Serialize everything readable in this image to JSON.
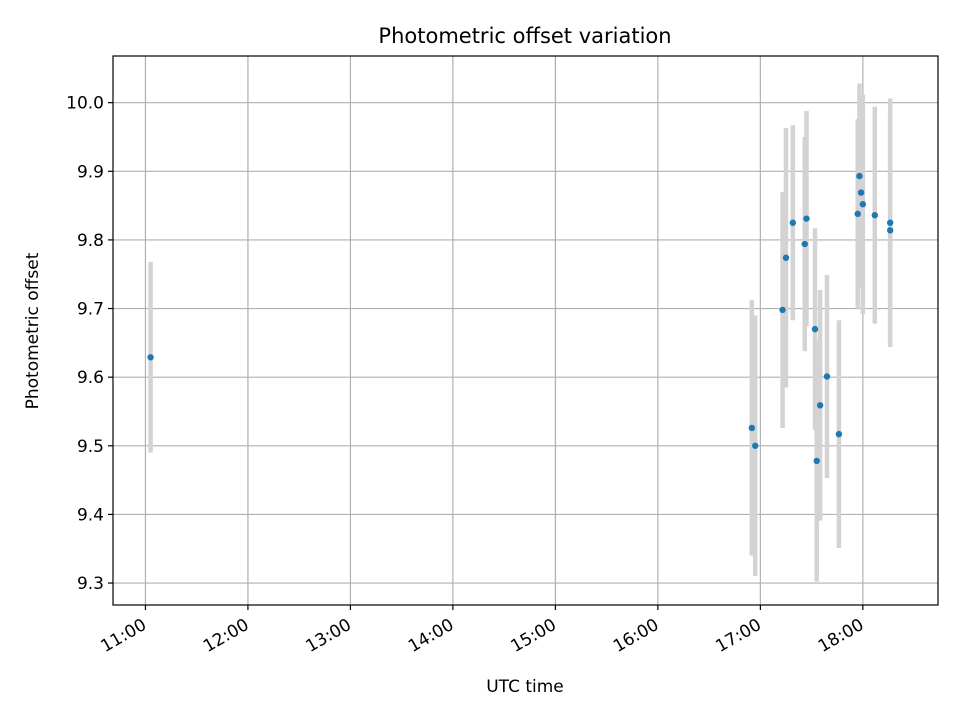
{
  "chart_data": {
    "type": "scatter",
    "title": "Photometric offset variation",
    "xlabel": "UTC time",
    "ylabel": "Photometric offset",
    "x_ticks": [
      "11:00",
      "12:00",
      "13:00",
      "14:00",
      "15:00",
      "16:00",
      "17:00",
      "18:00"
    ],
    "y_ticks": [
      "9.3",
      "9.4",
      "9.5",
      "9.6",
      "9.7",
      "9.8",
      "9.9",
      "10.0"
    ],
    "xlim": [
      "10:41",
      "18:44"
    ],
    "ylim": [
      9.268,
      10.068
    ],
    "grid": true,
    "point_color": "#1f77b4",
    "errorbar_color": "#d3d3d3",
    "points": [
      {
        "x": "11:03",
        "y": 9.629,
        "yerr": 0.139
      },
      {
        "x": "16:55",
        "y": 9.526,
        "yerr": 0.186
      },
      {
        "x": "16:57",
        "y": 9.5,
        "yerr": 0.19
      },
      {
        "x": "17:13",
        "y": 9.698,
        "yerr": 0.172
      },
      {
        "x": "17:15",
        "y": 9.774,
        "yerr": 0.189
      },
      {
        "x": "17:19",
        "y": 9.825,
        "yerr": 0.142
      },
      {
        "x": "17:26",
        "y": 9.794,
        "yerr": 0.156
      },
      {
        "x": "17:27",
        "y": 9.831,
        "yerr": 0.157
      },
      {
        "x": "17:32",
        "y": 9.67,
        "yerr": 0.147
      },
      {
        "x": "17:33",
        "y": 9.478,
        "yerr": 0.176
      },
      {
        "x": "17:35",
        "y": 9.559,
        "yerr": 0.168
      },
      {
        "x": "17:39",
        "y": 9.601,
        "yerr": 0.148
      },
      {
        "x": "17:46",
        "y": 9.517,
        "yerr": 0.166
      },
      {
        "x": "17:57",
        "y": 9.838,
        "yerr": 0.138
      },
      {
        "x": "17:58",
        "y": 9.893,
        "yerr": 0.135
      },
      {
        "x": "17:59",
        "y": 9.869,
        "yerr": 0.139
      },
      {
        "x": "18:00",
        "y": 9.852,
        "yerr": 0.16
      },
      {
        "x": "18:07",
        "y": 9.836,
        "yerr": 0.158
      },
      {
        "x": "18:16",
        "y": 9.825,
        "yerr": 0.181
      },
      {
        "x": "18:16",
        "y": 9.814,
        "yerr": 0.168
      }
    ]
  }
}
